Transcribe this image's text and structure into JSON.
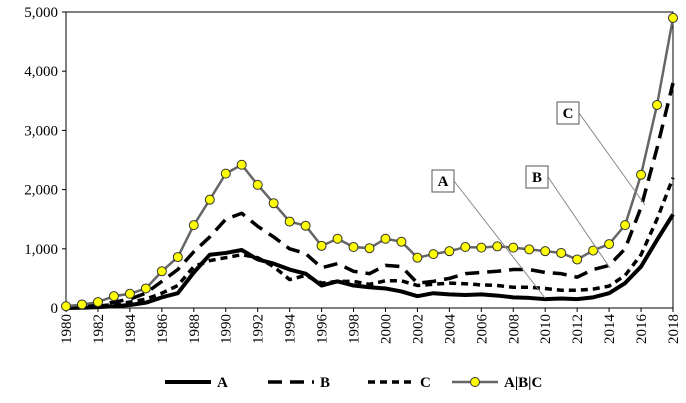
{
  "chart_data": {
    "type": "line",
    "x": [
      1980,
      1981,
      1982,
      1983,
      1984,
      1985,
      1986,
      1987,
      1988,
      1989,
      1990,
      1991,
      1992,
      1993,
      1994,
      1995,
      1996,
      1997,
      1998,
      1999,
      2000,
      2001,
      2002,
      2003,
      2004,
      2005,
      2006,
      2007,
      2008,
      2009,
      2010,
      2011,
      2012,
      2013,
      2014,
      2015,
      2016,
      2017,
      2018
    ],
    "xlim": [
      1980,
      2018
    ],
    "xticks": [
      1980,
      1982,
      1984,
      1986,
      1988,
      1990,
      1992,
      1994,
      1996,
      1998,
      2000,
      2002,
      2004,
      2006,
      2008,
      2010,
      2012,
      2014,
      2016,
      2018
    ],
    "ylim": [
      0,
      5000
    ],
    "yticks": [
      0,
      {
        "value": 1000,
        "label": "1,000"
      },
      {
        "value": 2000,
        "label": "2,000"
      },
      {
        "value": 3000,
        "label": "3,000"
      },
      {
        "value": 4000,
        "label": "4,000"
      },
      {
        "value": 5000,
        "label": "5,000"
      }
    ],
    "series": [
      {
        "name": "A",
        "color": "#000000",
        "style": "solid",
        "values": [
          0,
          5,
          15,
          30,
          50,
          90,
          180,
          250,
          600,
          900,
          930,
          980,
          820,
          750,
          650,
          580,
          380,
          450,
          380,
          350,
          330,
          280,
          200,
          250,
          230,
          220,
          230,
          210,
          180,
          170,
          150,
          160,
          150,
          180,
          250,
          420,
          700,
          1150,
          1580
        ]
      },
      {
        "name": "B",
        "color": "#000000",
        "style": "long-dash",
        "values": [
          0,
          20,
          50,
          100,
          150,
          250,
          450,
          650,
          950,
          1200,
          1500,
          1600,
          1380,
          1200,
          1000,
          920,
          680,
          750,
          620,
          580,
          720,
          700,
          420,
          450,
          500,
          580,
          600,
          620,
          650,
          650,
          600,
          580,
          520,
          650,
          720,
          1000,
          1700,
          2700,
          3800
        ]
      },
      {
        "name": "C",
        "color": "#000000",
        "style": "short-dash",
        "values": [
          0,
          10,
          30,
          60,
          100,
          150,
          250,
          380,
          700,
          800,
          850,
          900,
          850,
          700,
          480,
          550,
          420,
          450,
          450,
          400,
          460,
          460,
          380,
          400,
          420,
          410,
          390,
          380,
          350,
          350,
          330,
          300,
          300,
          320,
          370,
          550,
          900,
          1500,
          2200
        ]
      },
      {
        "name": "A|B|C",
        "color": "#666666",
        "style": "marker",
        "marker_color": "#ffff00",
        "values": [
          30,
          60,
          100,
          200,
          240,
          330,
          620,
          860,
          1400,
          1830,
          2270,
          2420,
          2080,
          1770,
          1460,
          1390,
          1050,
          1170,
          1030,
          1010,
          1170,
          1120,
          850,
          910,
          960,
          1030,
          1020,
          1040,
          1020,
          990,
          960,
          930,
          820,
          970,
          1080,
          1400,
          2250,
          3430,
          4900
        ]
      }
    ],
    "annotations": [
      {
        "text": "A"
      },
      {
        "text": "B"
      },
      {
        "text": "C"
      }
    ]
  }
}
